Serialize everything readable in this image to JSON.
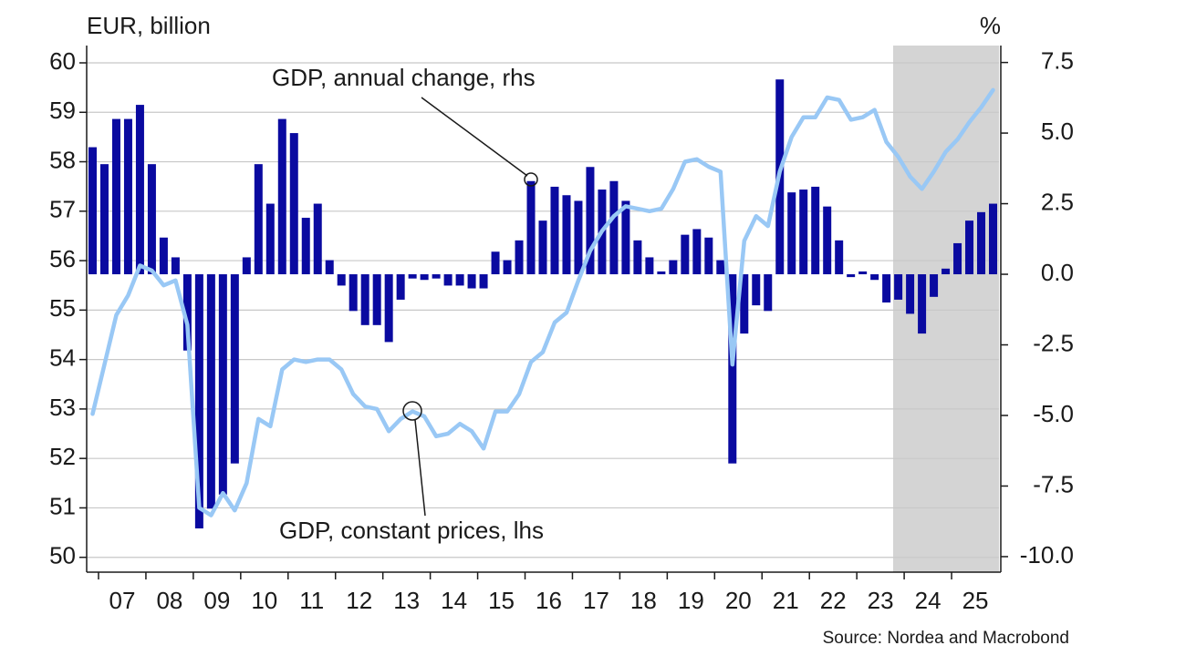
{
  "chart_data": {
    "type": "bar",
    "y_label": "EUR, billion",
    "y2_label": "%",
    "source": "Source: Nordea and Macrobond",
    "categories": [
      null,
      null,
      "07",
      null,
      null,
      null,
      "08",
      null,
      null,
      null,
      "09",
      null,
      null,
      null,
      "10",
      null,
      null,
      null,
      "11",
      null,
      null,
      null,
      "12",
      null,
      null,
      null,
      "13",
      null,
      null,
      null,
      "14",
      null,
      null,
      null,
      "15",
      null,
      null,
      null,
      "16",
      null,
      null,
      null,
      "17",
      null,
      null,
      null,
      "18",
      null,
      null,
      null,
      "19",
      null,
      null,
      null,
      "20",
      null,
      null,
      null,
      "21",
      null,
      null,
      null,
      "22",
      null,
      null,
      null,
      "23",
      null,
      null,
      null,
      "24",
      null,
      null,
      null,
      "25",
      null,
      null
    ],
    "series": [
      {
        "name": "GDP, annual change, rhs",
        "type": "bar",
        "axis": "y2",
        "color": "#0a0aa0",
        "values": [
          4.5,
          3.9,
          5.5,
          5.5,
          6.0,
          3.9,
          1.3,
          0.6,
          -2.7,
          -9.0,
          -8.3,
          -7.8,
          -6.7,
          0.6,
          3.9,
          2.5,
          5.5,
          5.0,
          2.0,
          2.5,
          0.5,
          -0.4,
          -1.3,
          -1.8,
          -1.8,
          -2.4,
          -0.9,
          -0.15,
          -0.2,
          -0.15,
          -0.4,
          -0.4,
          -0.5,
          -0.5,
          0.8,
          0.5,
          1.2,
          3.3,
          1.9,
          3.1,
          2.8,
          2.6,
          3.8,
          3.0,
          3.3,
          2.6,
          1.2,
          0.6,
          0.1,
          0.5,
          1.4,
          1.6,
          1.3,
          0.5,
          -6.7,
          -2.1,
          -1.1,
          -1.3,
          6.9,
          2.9,
          3.0,
          3.1,
          2.4,
          1.2,
          -0.1,
          0.1,
          -0.2,
          -1.0,
          -0.9,
          -1.4,
          -2.1,
          -0.8,
          0.2,
          1.1,
          1.9,
          2.2,
          2.5
        ]
      },
      {
        "name": "GDP, constant prices, lhs",
        "type": "line",
        "color": "#99c8f5",
        "values": [
          52.9,
          53.9,
          54.9,
          55.3,
          55.9,
          55.8,
          55.5,
          55.6,
          54.7,
          51.0,
          50.85,
          51.3,
          50.95,
          51.5,
          52.8,
          52.65,
          53.8,
          54.0,
          53.95,
          54.0,
          54.0,
          53.8,
          53.3,
          53.05,
          53.0,
          52.55,
          52.8,
          52.95,
          52.85,
          52.45,
          52.5,
          52.7,
          52.55,
          52.2,
          52.95,
          52.95,
          53.3,
          53.95,
          54.15,
          54.75,
          54.95,
          55.6,
          56.2,
          56.6,
          56.9,
          57.1,
          57.05,
          57.0,
          57.05,
          57.45,
          58.0,
          58.05,
          57.9,
          57.8,
          53.9,
          56.4,
          56.9,
          56.7,
          57.8,
          58.5,
          58.9,
          58.9,
          59.3,
          59.25,
          58.85,
          58.9,
          59.05,
          58.4,
          58.1,
          57.7,
          57.45,
          57.8,
          58.2,
          58.45,
          58.8,
          59.1,
          59.45
        ]
      }
    ],
    "ylim": [
      49.7,
      60.35
    ],
    "yticks": [
      50,
      51,
      52,
      53,
      54,
      55,
      56,
      57,
      58,
      59,
      60
    ],
    "y2lim": [
      -10.55,
      8.1
    ],
    "y2ticks": [
      {
        "value": -10,
        "label": "-10.0"
      },
      -7.5,
      {
        "value": -5,
        "label": "-5.0"
      },
      -2.5,
      {
        "value": 0,
        "label": "0.0"
      },
      2.5,
      {
        "value": 5,
        "label": "5.0"
      },
      7.5
    ],
    "grid": true
  }
}
